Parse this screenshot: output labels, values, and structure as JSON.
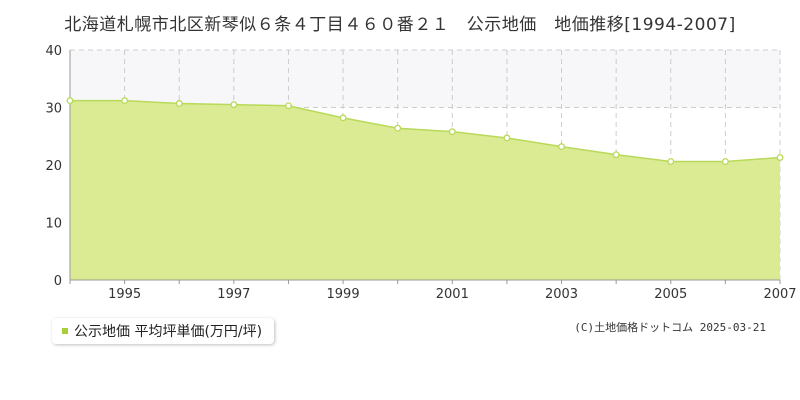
{
  "colors": {
    "area_fill": "#dbeb94",
    "line": "#b8d95a",
    "grid": "#cccccc",
    "axis": "#999999",
    "upper_band": "#f7f7fa",
    "legend_swatch": "#a8cf3a"
  },
  "chart_data": {
    "type": "area",
    "title": "北海道札幌市北区新琴似６条４丁目４６０番２１　公示地価　地価推移[1994-2007]",
    "xlabel": "",
    "ylabel": "",
    "xlim": [
      1994,
      2007
    ],
    "ylim": [
      0,
      40
    ],
    "grid": true,
    "legend_position": "bottom-left",
    "x_ticks": [
      1995,
      1997,
      1999,
      2001,
      2003,
      2005,
      2007
    ],
    "y_ticks": [
      0,
      10,
      20,
      30,
      40
    ],
    "series": [
      {
        "name": "公示地価 平均坪単価(万円/坪)",
        "x": [
          1994,
          1995,
          1996,
          1997,
          1998,
          1999,
          2000,
          2001,
          2002,
          2003,
          2004,
          2005,
          2006,
          2007
        ],
        "values": [
          31.2,
          31.2,
          30.7,
          30.5,
          30.3,
          28.2,
          26.4,
          25.8,
          24.7,
          23.2,
          21.8,
          20.6,
          20.6,
          21.3
        ]
      }
    ]
  },
  "legend": {
    "label": "公示地価 平均坪単価(万円/坪)"
  },
  "credit": "(C)土地価格ドットコム 2025-03-21"
}
